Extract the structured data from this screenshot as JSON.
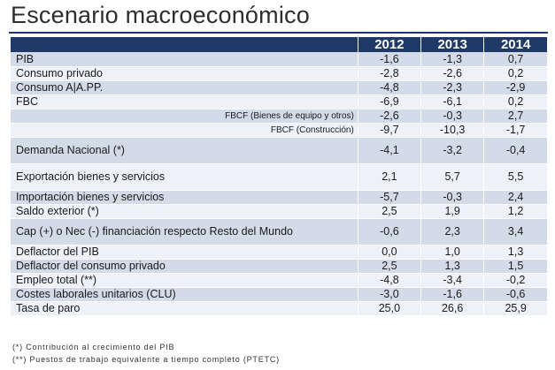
{
  "title": "Escenario macroeconómico",
  "columns": [
    "2012",
    "2013",
    "2014"
  ],
  "rows": [
    {
      "label": "PIB",
      "values": [
        "-1,6",
        "-1,3",
        "0,7"
      ],
      "sub": false,
      "h": 16
    },
    {
      "label": "Consumo privado",
      "values": [
        "-2,8",
        "-2,6",
        "0,2"
      ],
      "sub": false,
      "h": 16
    },
    {
      "label": "Consumo  A|A.PP.",
      "values": [
        "-4,8",
        "-2,3",
        "-2,9"
      ],
      "sub": false,
      "h": 16
    },
    {
      "label": "FBC",
      "values": [
        "-6,9",
        "-6,1",
        "0,2"
      ],
      "sub": false,
      "h": 16
    },
    {
      "label": "FBCF (Bienes de equipo y otros)",
      "values": [
        "-2,6",
        "-0,3",
        "2,7"
      ],
      "sub": true,
      "h": 16
    },
    {
      "label": "FBCF (Construcción)",
      "values": [
        "-9,7",
        "-10,3",
        "-1,7"
      ],
      "sub": true,
      "h": 16
    },
    {
      "label": "Demanda Nacional  (*)",
      "values": [
        "-4,1",
        "-3,2",
        "-0,4"
      ],
      "sub": false,
      "h": 30
    },
    {
      "label": "Exportación bienes y servicios",
      "values": [
        "2,1",
        "5,7",
        "5,5"
      ],
      "sub": false,
      "h": 30
    },
    {
      "label": "Importación bienes y servicios",
      "values": [
        "-5,7",
        "-0,3",
        "2,4"
      ],
      "sub": false,
      "h": 16
    },
    {
      "label": "Saldo exterior  (*)",
      "values": [
        "2,5",
        "1,9",
        "1,2"
      ],
      "sub": false,
      "h": 16
    },
    {
      "label": "Cap (+) o Nec (-) financiación respecto Resto del Mundo",
      "values": [
        "-0,6",
        "2,3",
        "3,4"
      ],
      "sub": false,
      "h": 30
    },
    {
      "label": "Deflactor del PIB",
      "values": [
        "0,0",
        "1,0",
        "1,3"
      ],
      "sub": false,
      "h": 16
    },
    {
      "label": "Deflactor del consumo privado",
      "values": [
        "2,5",
        "1,3",
        "1,5"
      ],
      "sub": false,
      "h": 16
    },
    {
      "label": "Empleo total (**)",
      "values": [
        "-4,8",
        "-3,4",
        "-0,2"
      ],
      "sub": false,
      "h": 16
    },
    {
      "label": "Costes laborales unitarios (CLU)",
      "values": [
        "-3,0",
        "-1,6",
        "-0,6"
      ],
      "sub": false,
      "h": 16
    },
    {
      "label": "Tasa de paro",
      "values": [
        "25,0",
        "26,6",
        "25,9"
      ],
      "sub": false,
      "h": 16
    }
  ],
  "notes": [
    "(*) Contribución al crecimiento del PIB",
    "(**) Puestos de trabajo equivalente a tiempo completo (PTETC)"
  ]
}
